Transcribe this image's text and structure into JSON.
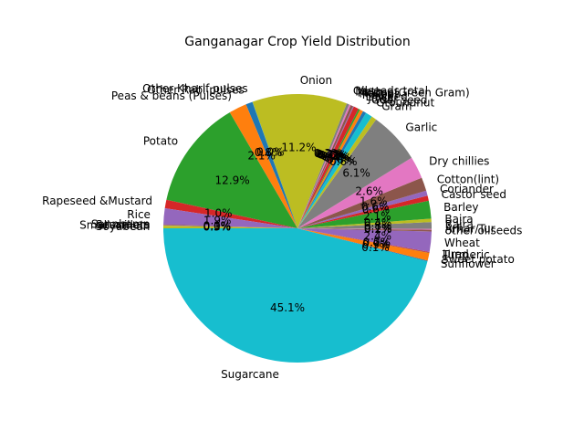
{
  "chart_data": {
    "type": "pie",
    "title": "Ganganagar Crop Yield Distribution",
    "start_angle_deg": 180,
    "direction": "counterclockwise",
    "slices": [
      {
        "label": "Sugarcane",
        "pct": "45.1%",
        "value": 45.1,
        "color": "#17becf"
      },
      {
        "label": "Sunflower",
        "pct": "0.1%",
        "value": 0.1,
        "color": "#1f77b4"
      },
      {
        "label": "Sweet potato",
        "pct": "0.9%",
        "value": 0.9,
        "color": "#ff7f0e"
      },
      {
        "label": "Turmeric",
        "pct": "0.0%",
        "value": 0.02,
        "color": "#2ca02c"
      },
      {
        "label": "Urad",
        "pct": "0.1%",
        "value": 0.1,
        "color": "#d62728"
      },
      {
        "label": "Wheat",
        "pct": "2.4%",
        "value": 2.4,
        "color": "#9467bd"
      },
      {
        "label": "other oilseeds",
        "pct": "0.2%",
        "value": 0.2,
        "color": "#8c564b"
      },
      {
        "label": "Arhar/Tur",
        "pct": "0.1%",
        "value": 0.1,
        "color": "#e377c2"
      },
      {
        "label": "Bajra",
        "pct": "0.8%",
        "value": 0.8,
        "color": "#7f7f7f"
      },
      {
        "label": "Bajra",
        "pct": "0.4%",
        "value": 0.4,
        "color": "#bcbd22"
      },
      {
        "label": "Barley",
        "pct": "2.1%",
        "value": 2.1,
        "color": "#2ca02c"
      },
      {
        "label": "Castor seed",
        "pct": "0.6%",
        "value": 0.6,
        "color": "#d62728"
      },
      {
        "label": "Coriander",
        "pct": "0.6%",
        "value": 0.6,
        "color": "#9467bd"
      },
      {
        "label": "Cotton(lint)",
        "pct": "1.6%",
        "value": 1.6,
        "color": "#8c564b"
      },
      {
        "label": "Dry chillies",
        "pct": "2.6%",
        "value": 2.6,
        "color": "#e377c2"
      },
      {
        "label": "Garlic",
        "pct": "6.1%",
        "value": 6.1,
        "color": "#7f7f7f"
      },
      {
        "label": "Gram",
        "pct": "0.6%",
        "value": 0.6,
        "color": "#bcbd22"
      },
      {
        "label": "Groundnut",
        "pct": "0.8%",
        "value": 0.8,
        "color": "#17becf"
      },
      {
        "label": "Guar seed",
        "pct": "0.4%",
        "value": 0.4,
        "color": "#1f77b4"
      },
      {
        "label": "Jowar",
        "pct": "0.4%",
        "value": 0.4,
        "color": "#ff7f0e"
      },
      {
        "label": "Linseed",
        "pct": "0.2%",
        "value": 0.2,
        "color": "#2ca02c"
      },
      {
        "label": "Maize",
        "pct": "0.6%",
        "value": 0.6,
        "color": "#d62728"
      },
      {
        "label": "Masoor",
        "pct": "0.1%",
        "value": 0.1,
        "color": "#9467bd"
      },
      {
        "label": "Moong(Green Gram)",
        "pct": "0.3%",
        "value": 0.3,
        "color": "#8c564b"
      },
      {
        "label": "Moth",
        "pct": "0.2%",
        "value": 0.2,
        "color": "#e377c2"
      },
      {
        "label": "Oilseeds total",
        "pct": "0.3%",
        "value": 0.3,
        "color": "#7f7f7f"
      },
      {
        "label": "Onion",
        "pct": "11.2%",
        "value": 11.2,
        "color": "#bcbd22"
      },
      {
        "label": "Other Kharif pulses",
        "pct": "0.0%",
        "value": 0.02,
        "color": "#17becf"
      },
      {
        "label": "Other Rabi pulses",
        "pct": "0.8%",
        "value": 0.8,
        "color": "#1f77b4"
      },
      {
        "label": "Peas & beans (Pulses)",
        "pct": "2.1%",
        "value": 2.1,
        "color": "#ff7f0e"
      },
      {
        "label": "Potato",
        "pct": "12.9%",
        "value": 12.9,
        "color": "#2ca02c"
      },
      {
        "label": "Rapeseed &Mustard",
        "pct": "1.0%",
        "value": 1.0,
        "color": "#d62728"
      },
      {
        "label": "Rice",
        "pct": "1.9%",
        "value": 1.9,
        "color": "#9467bd"
      },
      {
        "label": "Sannhamp",
        "pct": "0.1%",
        "value": 0.1,
        "color": "#8c564b"
      },
      {
        "label": "Sesamum",
        "pct": "0.0%",
        "value": 0.02,
        "color": "#e377c2"
      },
      {
        "label": "Small millets",
        "pct": "0.0%",
        "value": 0.02,
        "color": "#7f7f7f"
      },
      {
        "label": "Soyabean",
        "pct": "0.3%",
        "value": 0.3,
        "color": "#bcbd22"
      }
    ]
  }
}
